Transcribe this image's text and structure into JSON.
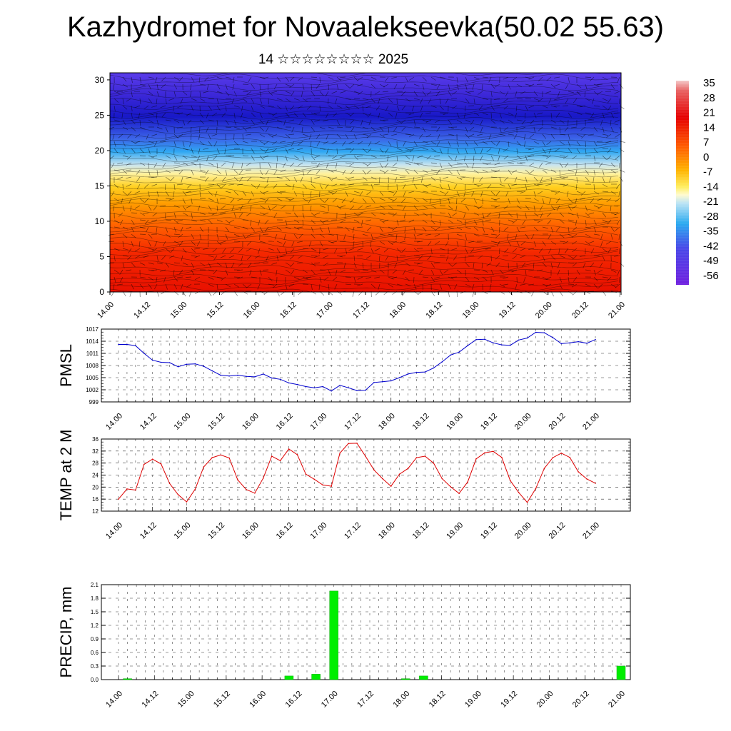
{
  "title": "Kazhydromet for Novaalekseevka(50.02 55.63)",
  "subtitle": "14 ☆☆☆☆☆☆☆☆ 2025",
  "time_labels": [
    "14.00",
    "14.12",
    "15.00",
    "15.12",
    "16.00",
    "16.12",
    "17.00",
    "17.12",
    "18.00",
    "18.12",
    "19.00",
    "19.12",
    "20.00",
    "20.12",
    "21.00"
  ],
  "colors": {
    "pmsl_line": "#0000cc",
    "temp_line": "#dd0000",
    "precip_bar": "#00ee00"
  },
  "chart_data": [
    {
      "type": "heatmap",
      "title": "",
      "xlabel": "",
      "ylabel": "",
      "y_ticks": [
        "0",
        "5",
        "10",
        "15",
        "20",
        "25",
        "30"
      ],
      "ylim": [
        0,
        31
      ],
      "colorbar": {
        "labels": [
          "35",
          "28",
          "21",
          "14",
          "7",
          "0",
          "-7",
          "-14",
          "-21",
          "-28",
          "-35",
          "-42",
          "-49",
          "-56"
        ],
        "range": [
          -63,
          38
        ]
      },
      "levels": [
        {
          "height": 0,
          "temp": 32
        },
        {
          "height": 2,
          "temp": 28
        },
        {
          "height": 5,
          "temp": 21
        },
        {
          "height": 8,
          "temp": 14
        },
        {
          "height": 11,
          "temp": 7
        },
        {
          "height": 13,
          "temp": 0
        },
        {
          "height": 15,
          "temp": -7
        },
        {
          "height": 16.5,
          "temp": -14
        },
        {
          "height": 18,
          "temp": -21
        },
        {
          "height": 20,
          "temp": -30
        },
        {
          "height": 22,
          "temp": -40
        },
        {
          "height": 24,
          "temp": -52
        },
        {
          "height": 26,
          "temp": -58
        },
        {
          "height": 28,
          "temp": -54
        },
        {
          "height": 31,
          "temp": -50
        }
      ]
    },
    {
      "type": "line",
      "ylabel": "PMSL",
      "ylim": [
        999,
        1017
      ],
      "y_ticks": [
        "999",
        "1002",
        "1005",
        "1008",
        "1011",
        "1014",
        "1017"
      ],
      "x": [
        "14.00",
        "14.03",
        "14.06",
        "14.09",
        "14.12",
        "14.15",
        "14.18",
        "14.21",
        "15.00",
        "15.03",
        "15.06",
        "15.09",
        "15.12",
        "15.15",
        "15.18",
        "15.21",
        "16.00",
        "16.03",
        "16.06",
        "16.09",
        "16.12",
        "16.15",
        "16.18",
        "16.21",
        "17.00",
        "17.03",
        "17.06",
        "17.09",
        "17.12",
        "17.15",
        "17.18",
        "17.21",
        "18.00",
        "18.03",
        "18.06",
        "18.09",
        "18.12",
        "18.15",
        "18.18",
        "18.21",
        "19.00",
        "19.03",
        "19.06",
        "19.09",
        "19.12",
        "19.15",
        "19.18",
        "19.21",
        "20.00",
        "20.03",
        "20.06",
        "20.09",
        "20.12",
        "20.15",
        "20.18",
        "20.21",
        "21.00"
      ],
      "series": [
        {
          "values": [
            1013.2,
            1013.2,
            1012.9,
            1011.0,
            1009.3,
            1008.8,
            1008.7,
            1007.7,
            1008.3,
            1008.4,
            1007.8,
            1006.7,
            1005.6,
            1005.4,
            1005.6,
            1005.3,
            1005.2,
            1005.9,
            1004.9,
            1004.6,
            1003.7,
            1003.3,
            1002.8,
            1002.5,
            1002.8,
            1001.7,
            1003.1,
            1002.5,
            1001.8,
            1001.9,
            1003.8,
            1004.0,
            1004.2,
            1005.0,
            1005.9,
            1006.3,
            1006.4,
            1007.4,
            1008.9,
            1010.6,
            1011.3,
            1012.9,
            1014.4,
            1014.5,
            1013.6,
            1013.1,
            1013.0,
            1014.3,
            1014.8,
            1016.2,
            1016.1,
            1014.9,
            1013.4,
            1013.6,
            1013.9,
            1013.5,
            1014.4
          ]
        }
      ]
    },
    {
      "type": "line",
      "ylabel": "TEMP at 2 M",
      "ylim": [
        12,
        36
      ],
      "y_ticks": [
        "12",
        "16",
        "20",
        "24",
        "28",
        "32",
        "36"
      ],
      "x": [
        "14.00",
        "14.03",
        "14.06",
        "14.09",
        "14.12",
        "14.15",
        "14.18",
        "14.21",
        "15.00",
        "15.03",
        "15.06",
        "15.09",
        "15.12",
        "15.15",
        "15.18",
        "15.21",
        "16.00",
        "16.03",
        "16.06",
        "16.09",
        "16.12",
        "16.15",
        "16.18",
        "16.21",
        "17.00",
        "17.03",
        "17.06",
        "17.09",
        "17.12",
        "17.15",
        "17.18",
        "17.21",
        "18.00",
        "18.03",
        "18.06",
        "18.09",
        "18.12",
        "18.15",
        "18.18",
        "18.21",
        "19.00",
        "19.03",
        "19.06",
        "19.09",
        "19.12",
        "19.15",
        "19.18",
        "19.21",
        "20.00",
        "20.03",
        "20.06",
        "20.09",
        "20.12",
        "20.15",
        "20.18",
        "20.21",
        "21.00"
      ],
      "series": [
        {
          "values": [
            16.0,
            19.4,
            19.0,
            27.6,
            29.3,
            27.7,
            21.2,
            17.5,
            15.1,
            19.3,
            26.7,
            29.8,
            30.7,
            29.7,
            22.4,
            19.2,
            18.0,
            23.0,
            30.3,
            28.8,
            32.7,
            30.8,
            24.3,
            22.6,
            20.7,
            20.3,
            31.3,
            34.5,
            34.6,
            30.3,
            25.7,
            22.8,
            20.3,
            24.3,
            26.2,
            29.8,
            30.3,
            28.0,
            22.8,
            20.1,
            17.9,
            21.7,
            29.4,
            31.4,
            31.9,
            29.9,
            22.2,
            18.2,
            14.9,
            19.5,
            26.2,
            29.8,
            31.3,
            29.9,
            25.1,
            22.7,
            21.3
          ]
        }
      ]
    },
    {
      "type": "bar",
      "ylabel": "PRECIP, mm",
      "ylim": [
        0,
        2.1
      ],
      "y_ticks": [
        "0.0",
        "0.3",
        "0.6",
        "0.9",
        "1.2",
        "1.5",
        "1.8",
        "2.1"
      ],
      "x": [
        "14.03",
        "16.09",
        "16.18",
        "17.00",
        "18.00",
        "18.06",
        "21.00"
      ],
      "values": [
        0.02,
        0.08,
        0.12,
        1.96,
        0.02,
        0.08,
        0.3
      ]
    }
  ]
}
